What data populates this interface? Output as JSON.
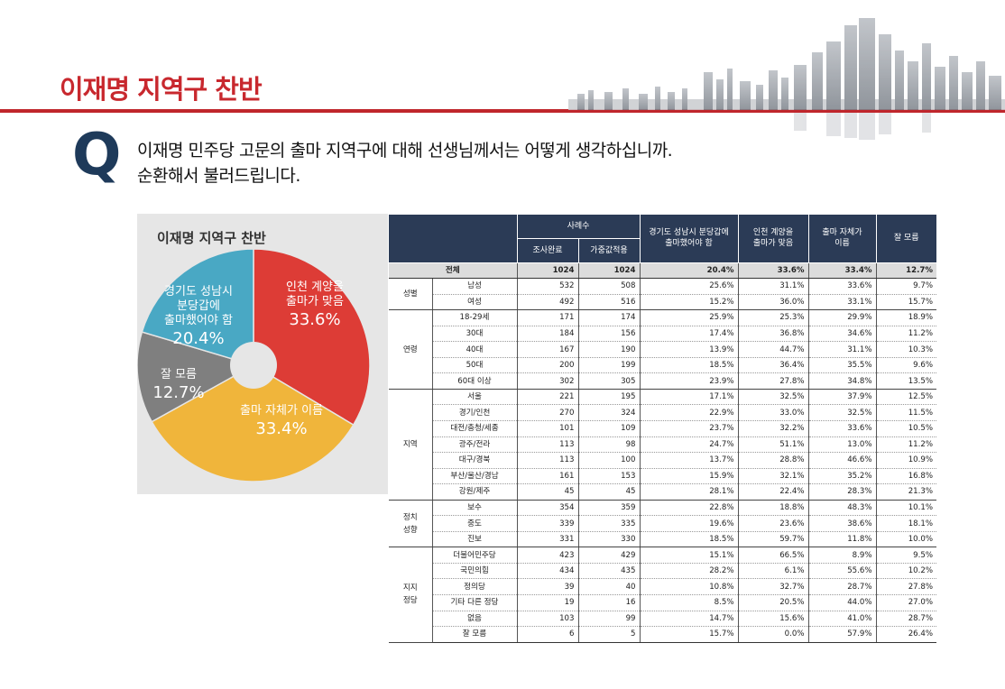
{
  "page": {
    "title": "이재명 지역구 찬반",
    "q_mark": "Q",
    "question_lines": [
      "이재명 민주당 고문의 출마 지역구에 대해 선생님께서는 어떻게 생각하십니까.",
      "순환해서 불러드립니다."
    ]
  },
  "chart_data": {
    "type": "pie",
    "title": "이재명 지역구 찬반",
    "slices": [
      {
        "label": "인천 계양을 출마가 맞음",
        "label_lines": [
          "인천 계양을",
          "출마가 맞음"
        ],
        "value": 33.6,
        "value_label": "33.6%",
        "color": "#dd3c36"
      },
      {
        "label": "출마 자체가 이름",
        "label_lines": [
          "출마 자체가 이름"
        ],
        "value": 33.4,
        "value_label": "33.4%",
        "color": "#f0b53b"
      },
      {
        "label": "잘 모름",
        "label_lines": [
          "잘 모름"
        ],
        "value": 12.7,
        "value_label": "12.7%",
        "color": "#7f7f7f"
      },
      {
        "label": "경기도 성남시 분당갑에 출마했어야 함",
        "label_lines": [
          "경기도 성남시",
          "분당갑에",
          "출마했어야 함"
        ],
        "value": 20.4,
        "value_label": "20.4%",
        "color": "#49a8c4"
      }
    ]
  },
  "table": {
    "header": {
      "sample_group": "사례수",
      "completed": "조사완료",
      "weighted": "가중값적용",
      "columns": [
        [
          "경기도 성남시 분당갑에",
          "출마했어야 함"
        ],
        [
          "인천 계양을",
          "출마가 맞음"
        ],
        [
          "출마 자체가",
          "이름"
        ],
        [
          "잘 모름"
        ]
      ]
    },
    "total": {
      "label": "전체",
      "values": [
        "1024",
        "1024",
        "20.4%",
        "33.6%",
        "33.4%",
        "12.7%"
      ]
    },
    "groups": [
      {
        "name_lines": [
          "성별"
        ],
        "rows": [
          {
            "label": "남성",
            "values": [
              "532",
              "508",
              "25.6%",
              "31.1%",
              "33.6%",
              "9.7%"
            ]
          },
          {
            "label": "여성",
            "values": [
              "492",
              "516",
              "15.2%",
              "36.0%",
              "33.1%",
              "15.7%"
            ]
          }
        ]
      },
      {
        "name_lines": [
          "연령"
        ],
        "rows": [
          {
            "label": "18-29세",
            "values": [
              "171",
              "174",
              "25.9%",
              "25.3%",
              "29.9%",
              "18.9%"
            ]
          },
          {
            "label": "30대",
            "values": [
              "184",
              "156",
              "17.4%",
              "36.8%",
              "34.6%",
              "11.2%"
            ]
          },
          {
            "label": "40대",
            "values": [
              "167",
              "190",
              "13.9%",
              "44.7%",
              "31.1%",
              "10.3%"
            ]
          },
          {
            "label": "50대",
            "values": [
              "200",
              "199",
              "18.5%",
              "36.4%",
              "35.5%",
              "9.6%"
            ]
          },
          {
            "label": "60대 이상",
            "values": [
              "302",
              "305",
              "23.9%",
              "27.8%",
              "34.8%",
              "13.5%"
            ]
          }
        ]
      },
      {
        "name_lines": [
          "지역"
        ],
        "rows": [
          {
            "label": "서울",
            "values": [
              "221",
              "195",
              "17.1%",
              "32.5%",
              "37.9%",
              "12.5%"
            ]
          },
          {
            "label": "경기/인천",
            "values": [
              "270",
              "324",
              "22.9%",
              "33.0%",
              "32.5%",
              "11.5%"
            ]
          },
          {
            "label": "대전/충청/세종",
            "values": [
              "101",
              "109",
              "23.7%",
              "32.2%",
              "33.6%",
              "10.5%"
            ]
          },
          {
            "label": "광주/전라",
            "values": [
              "113",
              "98",
              "24.7%",
              "51.1%",
              "13.0%",
              "11.2%"
            ]
          },
          {
            "label": "대구/경북",
            "values": [
              "113",
              "100",
              "13.7%",
              "28.8%",
              "46.6%",
              "10.9%"
            ]
          },
          {
            "label": "부산/울산/경남",
            "values": [
              "161",
              "153",
              "15.9%",
              "32.1%",
              "35.2%",
              "16.8%"
            ]
          },
          {
            "label": "강원/제주",
            "values": [
              "45",
              "45",
              "28.1%",
              "22.4%",
              "28.3%",
              "21.3%"
            ]
          }
        ]
      },
      {
        "name_lines": [
          "정치",
          "성향"
        ],
        "rows": [
          {
            "label": "보수",
            "values": [
              "354",
              "359",
              "22.8%",
              "18.8%",
              "48.3%",
              "10.1%"
            ]
          },
          {
            "label": "중도",
            "values": [
              "339",
              "335",
              "19.6%",
              "23.6%",
              "38.6%",
              "18.1%"
            ]
          },
          {
            "label": "진보",
            "values": [
              "331",
              "330",
              "18.5%",
              "59.7%",
              "11.8%",
              "10.0%"
            ]
          }
        ]
      },
      {
        "name_lines": [
          "지지",
          "정당"
        ],
        "rows": [
          {
            "label": "더불어민주당",
            "values": [
              "423",
              "429",
              "15.1%",
              "66.5%",
              "8.9%",
              "9.5%"
            ]
          },
          {
            "label": "국민의힘",
            "values": [
              "434",
              "435",
              "28.2%",
              "6.1%",
              "55.6%",
              "10.2%"
            ]
          },
          {
            "label": "정의당",
            "values": [
              "39",
              "40",
              "10.8%",
              "32.7%",
              "28.7%",
              "27.8%"
            ]
          },
          {
            "label": "기타 다른 정당",
            "values": [
              "19",
              "16",
              "8.5%",
              "20.5%",
              "44.0%",
              "27.0%"
            ]
          },
          {
            "label": "없음",
            "values": [
              "103",
              "99",
              "14.7%",
              "15.6%",
              "41.0%",
              "28.7%"
            ]
          },
          {
            "label": "잘 모름",
            "values": [
              "6",
              "5",
              "15.7%",
              "0.0%",
              "57.9%",
              "26.4%"
            ]
          }
        ]
      }
    ]
  }
}
